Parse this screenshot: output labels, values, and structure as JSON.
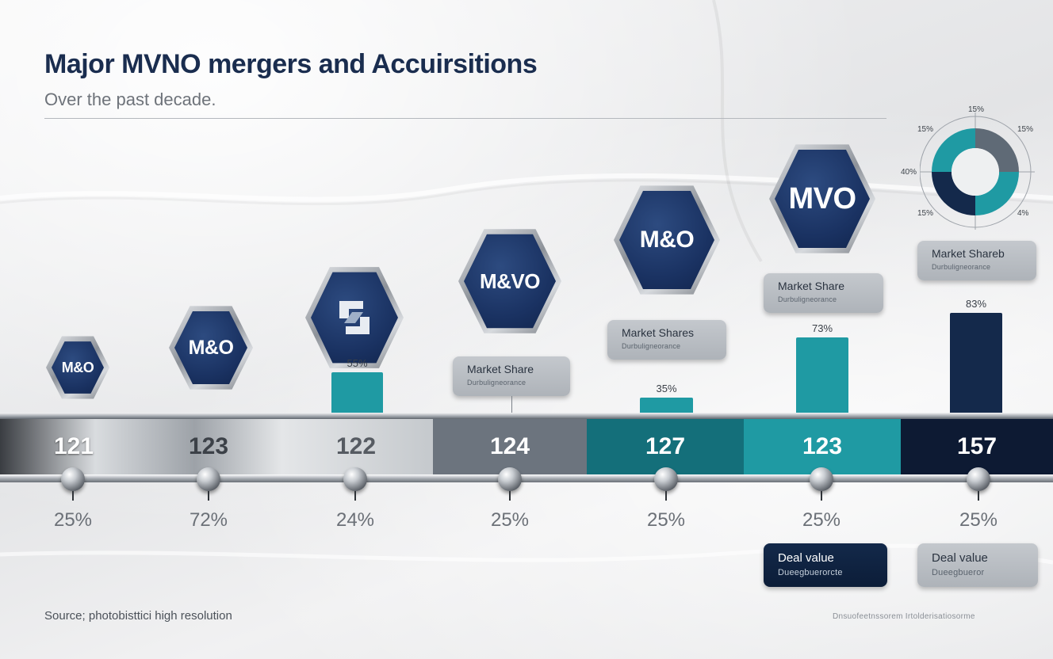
{
  "title": "Major MVNO mergers and Accuirsitions",
  "subtitle": "Over the past decade.",
  "badges": [
    {
      "text": "M&O"
    },
    {
      "text": "M&O"
    },
    {
      "text": "",
      "icon": "interlocking-logo-icon"
    },
    {
      "text": "M&VO"
    },
    {
      "text": "M&O"
    },
    {
      "text": "MVO"
    }
  ],
  "cards": [
    {
      "label": "Market Share",
      "sub": "Durbuligneorance"
    },
    {
      "label": "Market Shares",
      "sub": "Durbuligneorance"
    },
    {
      "label": "Market Share",
      "sub": "Durbuligneorance"
    },
    {
      "label": "Market Shareb",
      "sub": "Durbuligneorance"
    }
  ],
  "bars": [
    {
      "label": "55%",
      "value": 55
    },
    {
      "label": "35%",
      "value": 35
    },
    {
      "label": "73%",
      "value": 73
    },
    {
      "label": "83%",
      "value": 83
    }
  ],
  "timeline": {
    "values": [
      "121",
      "123",
      "122",
      "124",
      "127",
      "123",
      "157"
    ],
    "percents": [
      "25%",
      "72%",
      "24%",
      "25%",
      "25%",
      "25%",
      "25%"
    ]
  },
  "deal_cards": [
    {
      "label": "Deal value",
      "sub": "Dueegbuerorcte"
    },
    {
      "label": "Deal value",
      "sub": "Dueegbueror"
    }
  ],
  "donut": {
    "labels": [
      "15%",
      "15%",
      "15%",
      "40%",
      "15%",
      "4%"
    ]
  },
  "colors": {
    "navy": "#14294b",
    "teal": "#1f9aa3",
    "dark_teal": "#146f7a",
    "slate": "#6c747e",
    "midnight": "#0d1a33"
  },
  "source": "Source; photobisttici high resolution",
  "footnote": "Dnsuofeetnssorem   Irtolderisatiosorme"
}
